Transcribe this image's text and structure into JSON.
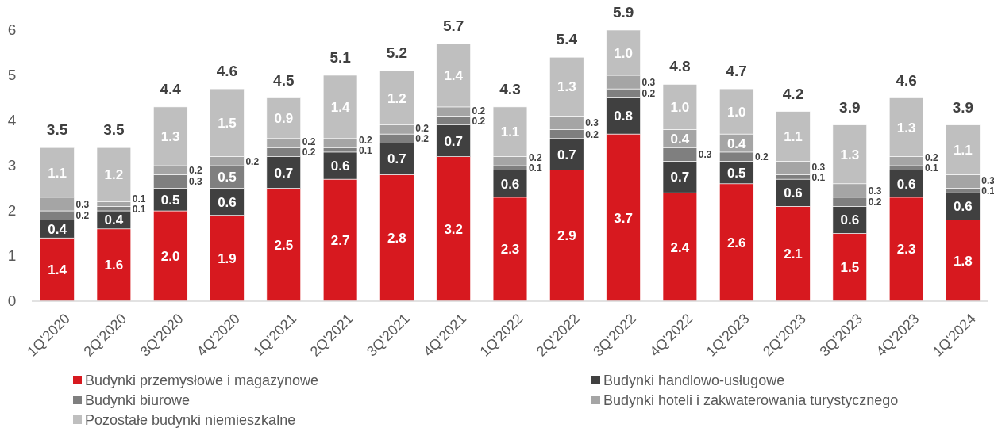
{
  "chart_data": {
    "type": "bar",
    "stacked": true,
    "categories": [
      "1Q'2020",
      "2Q'2020",
      "3Q'2020",
      "4Q'2020",
      "1Q'2021",
      "2Q'2021",
      "3Q'2021",
      "4Q'2021",
      "1Q'2022",
      "2Q'2022",
      "3Q'2022",
      "4Q'2022",
      "1Q'2023",
      "2Q'2023",
      "3Q'2023",
      "4Q'2023",
      "1Q'2024"
    ],
    "series": [
      {
        "name": "Budynki przemysłowe i magazynowe",
        "color": "#d7191f",
        "values": [
          1.4,
          1.6,
          2.0,
          1.9,
          2.5,
          2.7,
          2.8,
          3.2,
          2.3,
          2.9,
          3.7,
          2.4,
          2.6,
          2.1,
          1.5,
          2.3,
          1.8
        ],
        "value_labels": [
          "1.4",
          "1.6",
          "2.0",
          "1.9",
          "2.5",
          "2.7",
          "2.8",
          "3.2",
          "2.3",
          "2.9",
          "3.7",
          "2.4",
          "2.6",
          "2.1",
          "1.5",
          "2.3",
          "1.8"
        ]
      },
      {
        "name": "Budynki handlowo-usługowe",
        "color": "#404040",
        "values": [
          0.4,
          0.4,
          0.5,
          0.6,
          0.7,
          0.6,
          0.7,
          0.7,
          0.6,
          0.7,
          0.8,
          0.7,
          0.5,
          0.6,
          0.6,
          0.6,
          0.6
        ],
        "value_labels": [
          "0.4",
          "0.4",
          "0.5",
          "0.6",
          "0.7",
          "0.6",
          "0.7",
          "0.7",
          "0.6",
          "0.7",
          "0.8",
          "0.7",
          "0.5",
          "0.6",
          "0.6",
          "0.6",
          "0.6"
        ]
      },
      {
        "name": "Budynki biurowe",
        "color": "#7f7f7f",
        "values": [
          0.2,
          0.1,
          0.3,
          0.5,
          0.2,
          0.1,
          0.2,
          0.2,
          0.1,
          0.2,
          0.2,
          0.3,
          0.2,
          0.1,
          0.2,
          0.1,
          0.1
        ],
        "value_labels": [
          "0.2",
          "0.1",
          "0.3",
          "0.5",
          "0.2",
          "0.1",
          "0.2",
          "0.2",
          "0.1",
          "0.2",
          "0.2",
          "0.3",
          "0.2",
          "0.1",
          "0.2",
          "0.1",
          "0.1"
        ]
      },
      {
        "name": "Budynki hoteli i zakwaterowania turystycznego",
        "color": "#a5a5a5",
        "values": [
          0.3,
          0.1,
          0.2,
          0.2,
          0.2,
          0.2,
          0.2,
          0.2,
          0.2,
          0.3,
          0.3,
          0.4,
          0.4,
          0.3,
          0.3,
          0.2,
          0.3
        ],
        "value_labels": [
          "0.3",
          "0.1",
          "0.2",
          "0.2",
          "0.2",
          "0.2",
          "0.2",
          "0.2",
          "0.2",
          "0.3",
          "0.3",
          "0.4",
          "0.4",
          "0.3",
          "0.3",
          "0.2",
          "0.3"
        ]
      },
      {
        "name": "Pozostałe budynki niemieszkalne",
        "color": "#bfbfbf",
        "values": [
          1.1,
          1.2,
          1.3,
          1.5,
          0.9,
          1.4,
          1.2,
          1.4,
          1.1,
          1.3,
          1.0,
          1.0,
          1.0,
          1.1,
          1.3,
          1.3,
          1.1
        ],
        "value_labels": [
          "1.1",
          "1.2",
          "1.3",
          "1.5",
          "0.9",
          "1.4",
          "1.2",
          "1.4",
          "1.1",
          "1.3",
          "1.0",
          "1.0",
          "1.0",
          "1.1",
          "1.3",
          "1.3",
          "1.1"
        ]
      }
    ],
    "totals": [
      "3.5",
      "3.5",
      "4.4",
      "4.6",
      "4.5",
      "5.1",
      "5.2",
      "5.7",
      "4.3",
      "5.4",
      "5.9",
      "4.8",
      "4.7",
      "4.2",
      "3.9",
      "4.6",
      "3.9"
    ],
    "ylim": [
      0,
      6
    ],
    "yticks": [
      0,
      1,
      2,
      3,
      4,
      5,
      6
    ],
    "grid": false,
    "legend": "bottom"
  }
}
